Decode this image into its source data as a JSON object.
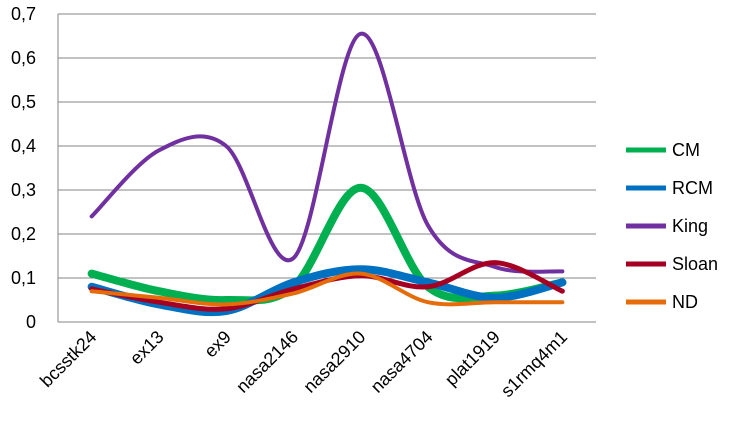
{
  "chart_data": {
    "type": "line",
    "title": "",
    "xlabel": "",
    "ylabel": "",
    "categories": [
      "bcsstk24",
      "ex13",
      "ex9",
      "nasa2146",
      "nasa2910",
      "nasa4704",
      "plat1919",
      "s1rmq4m1"
    ],
    "ylim": [
      0,
      0.7
    ],
    "y_ticks": [
      "0",
      "0,1",
      "0,2",
      "0,3",
      "0,4",
      "0,5",
      "0,6",
      "0,7"
    ],
    "grid": "horizontal",
    "legend_position": "right",
    "series": [
      {
        "name": "CM",
        "color": "#00b050",
        "values": [
          0.11,
          0.07,
          0.05,
          0.08,
          0.305,
          0.08,
          0.06,
          0.09
        ]
      },
      {
        "name": "RCM",
        "color": "#0070c0",
        "values": [
          0.08,
          0.04,
          0.025,
          0.09,
          0.12,
          0.09,
          0.055,
          0.09
        ]
      },
      {
        "name": "King",
        "color": "#7030a0",
        "values": [
          0.24,
          0.39,
          0.4,
          0.145,
          0.655,
          0.22,
          0.125,
          0.115
        ]
      },
      {
        "name": "Sloan",
        "color": "#a50021",
        "values": [
          0.075,
          0.045,
          0.03,
          0.075,
          0.105,
          0.08,
          0.135,
          0.07
        ]
      },
      {
        "name": "ND",
        "color": "#e46c0a",
        "values": [
          0.07,
          0.055,
          0.04,
          0.065,
          0.11,
          0.045,
          0.045,
          0.045
        ]
      }
    ]
  }
}
